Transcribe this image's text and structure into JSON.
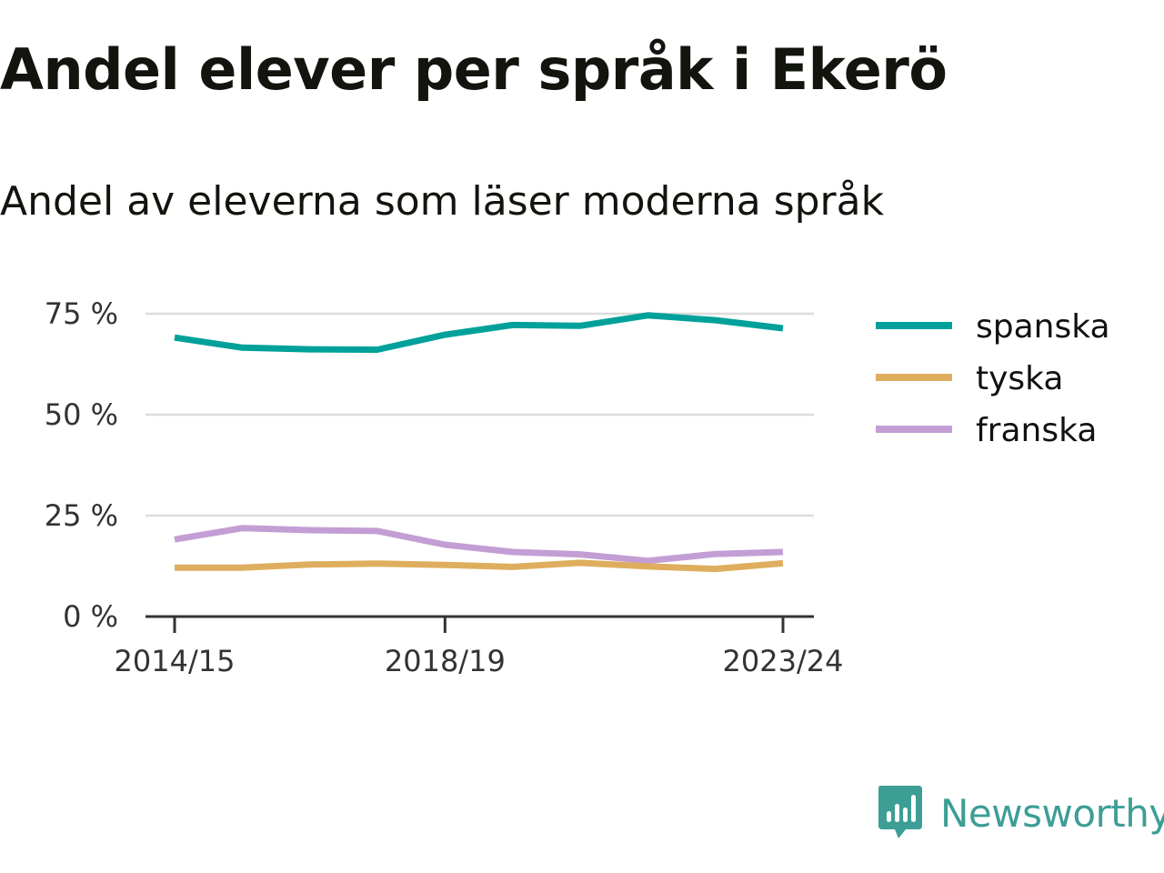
{
  "chart_data": {
    "type": "line",
    "title": "Andel elever per språk i Ekerö",
    "subtitle": "Andel av eleverna som läser moderna språk",
    "x": [
      "2014/15",
      "2015/16",
      "2016/17",
      "2017/18",
      "2018/19",
      "2019/20",
      "2020/21",
      "2021/22",
      "2022/23",
      "2023/24"
    ],
    "x_tick_labels": [
      "2014/15",
      "2018/19",
      "2023/24"
    ],
    "y_ticks": [
      0,
      25,
      50,
      75
    ],
    "y_tick_labels": [
      "0 %",
      "25 %",
      "50 %",
      "75 %"
    ],
    "ylim": [
      0,
      75
    ],
    "grid": true,
    "legend_placement": "right",
    "series": [
      {
        "name": "spanska",
        "color": "#00a19a",
        "values": [
          69.1,
          66.6,
          66.2,
          66.1,
          69.8,
          72.2,
          72.0,
          74.6,
          73.4,
          71.4
        ]
      },
      {
        "name": "tyska",
        "color": "#deae5e",
        "values": [
          12.1,
          12.1,
          12.9,
          13.1,
          12.8,
          12.3,
          13.3,
          12.4,
          11.8,
          13.2
        ]
      },
      {
        "name": "franska",
        "color": "#c39ed4",
        "values": [
          19.1,
          21.9,
          21.4,
          21.2,
          17.8,
          16.0,
          15.4,
          13.8,
          15.5,
          16.0
        ]
      }
    ]
  },
  "branding": {
    "logo_icon": "newsworthy-logo-icon",
    "name": "Newsworthy",
    "color": "#3d9e95"
  }
}
